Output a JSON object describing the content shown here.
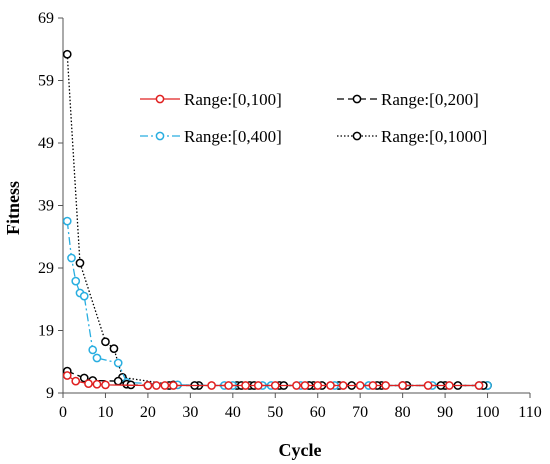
{
  "chart_data": {
    "type": "line",
    "xlabel": "Cycle",
    "ylabel": "Fitness",
    "xlim": [
      0,
      110
    ],
    "ylim": [
      9,
      69
    ],
    "xticks": [
      0,
      10,
      20,
      30,
      40,
      50,
      60,
      70,
      80,
      90,
      100,
      110
    ],
    "yticks": [
      9,
      19,
      29,
      39,
      49,
      59,
      69
    ],
    "xtick_labels": [
      "0",
      "10",
      "20",
      "30",
      "40",
      "50",
      "60",
      "70",
      "80",
      "90",
      "100",
      "110"
    ],
    "ytick_labels": [
      "9",
      "19",
      "29",
      "39",
      "49",
      "59",
      "69"
    ],
    "grid": false,
    "legend_position": "top-right",
    "series": [
      {
        "name": "Range:[0,100]",
        "color": "#e02020",
        "line": "solid",
        "x": [
          1,
          3,
          6,
          8,
          10,
          20,
          22,
          24,
          26,
          35,
          39,
          43,
          46,
          50,
          55,
          57,
          60,
          63,
          66,
          70,
          73,
          76,
          80,
          86,
          91,
          98
        ],
        "y": [
          11.8,
          10.9,
          10.5,
          10.4,
          10.3,
          10.2,
          10.2,
          10.2,
          10.2,
          10.2,
          10.2,
          10.2,
          10.2,
          10.2,
          10.2,
          10.2,
          10.2,
          10.2,
          10.2,
          10.2,
          10.2,
          10.2,
          10.2,
          10.2,
          10.2,
          10.2
        ]
      },
      {
        "name": "Range:[0,200]",
        "color": "#000000",
        "line": "dashed",
        "x": [
          1,
          5,
          7,
          13,
          15,
          16,
          20,
          25,
          31,
          42,
          45,
          52,
          58,
          61,
          68,
          74,
          80,
          89,
          93,
          99
        ],
        "y": [
          12.5,
          11.4,
          11.0,
          10.9,
          10.4,
          10.3,
          10.2,
          10.2,
          10.2,
          10.2,
          10.2,
          10.2,
          10.2,
          10.2,
          10.2,
          10.2,
          10.2,
          10.2,
          10.2,
          10.2
        ]
      },
      {
        "name": "Range:[0,400]",
        "color": "#29aee0",
        "line": "dashdot",
        "x": [
          1,
          2,
          3,
          4,
          5,
          7,
          8,
          13,
          15,
          27,
          38,
          40,
          47,
          49,
          56,
          58,
          64,
          72,
          87,
          98,
          100
        ],
        "y": [
          36.5,
          30.6,
          26.9,
          25.0,
          24.5,
          15.9,
          14.6,
          13.8,
          10.7,
          10.3,
          10.2,
          10.2,
          10.2,
          10.2,
          10.2,
          10.2,
          10.2,
          10.2,
          10.2,
          10.2,
          10.2
        ]
      },
      {
        "name": "Range:[0,1000]",
        "color": "#000000",
        "line": "dotted",
        "x": [
          1,
          4,
          10,
          12,
          14,
          26,
          32,
          41,
          44,
          51,
          59,
          65,
          75,
          81,
          90,
          100
        ],
        "y": [
          63.2,
          29.8,
          17.2,
          16.1,
          11.5,
          10.3,
          10.2,
          10.2,
          10.2,
          10.2,
          10.2,
          10.2,
          10.2,
          10.2,
          10.2,
          10.2
        ]
      }
    ]
  }
}
